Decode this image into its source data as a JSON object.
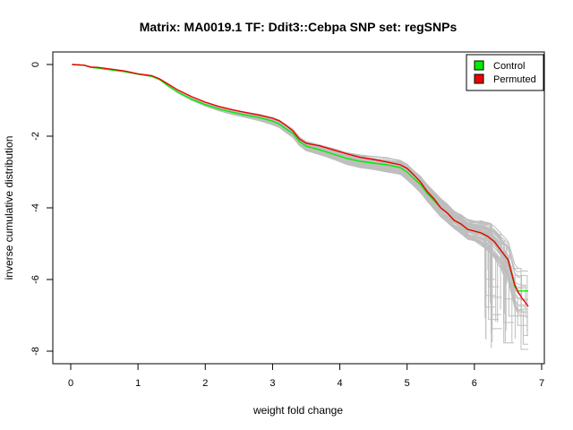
{
  "chart_data": {
    "type": "line",
    "title": "Matrix: MA0019.1 TF: Ddit3::Cebpa SNP set: regSNPs",
    "xlabel": "weight fold change",
    "ylabel": "inverse cumulative distribution",
    "xlim": [
      0,
      7
    ],
    "ylim": [
      -8,
      0
    ],
    "x_ticks": [
      "0",
      "1",
      "2",
      "3",
      "4",
      "5",
      "6",
      "7"
    ],
    "y_ticks": [
      "0",
      "-2",
      "-4",
      "-6",
      "-8"
    ],
    "grid": false,
    "legend": {
      "position": "top-right",
      "entries": [
        {
          "label": "Control",
          "color": "#00ee00"
        },
        {
          "label": "Permuted",
          "color": "#ee0000"
        }
      ]
    },
    "colors": {
      "background_lines": "#bebebe",
      "control": "#00ee00",
      "permuted": "#ee0000"
    },
    "background_line_count": 60,
    "series": [
      {
        "name": "Control",
        "color": "#00ee00",
        "x": [
          0.02,
          0.2,
          0.3,
          0.4,
          0.6,
          0.8,
          1.0,
          1.2,
          1.32,
          1.45,
          1.6,
          1.8,
          2.0,
          2.2,
          2.4,
          2.6,
          2.8,
          3.0,
          3.1,
          3.2,
          3.3,
          3.4,
          3.5,
          3.7,
          3.9,
          4.1,
          4.3,
          4.5,
          4.7,
          4.9,
          5.0,
          5.1,
          5.2,
          5.3,
          5.4,
          5.5,
          5.6,
          5.7,
          5.8,
          5.9,
          6.0,
          6.1,
          6.2,
          6.3,
          6.4,
          6.5,
          6.55,
          6.6,
          6.65,
          6.7,
          6.8
        ],
        "y": [
          0,
          -0.02,
          -0.08,
          -0.1,
          -0.15,
          -0.2,
          -0.27,
          -0.33,
          -0.42,
          -0.6,
          -0.78,
          -0.97,
          -1.12,
          -1.24,
          -1.33,
          -1.41,
          -1.48,
          -1.58,
          -1.66,
          -1.8,
          -1.92,
          -2.15,
          -2.28,
          -2.38,
          -2.5,
          -2.62,
          -2.7,
          -2.75,
          -2.8,
          -2.88,
          -3.0,
          -3.18,
          -3.35,
          -3.6,
          -3.8,
          -4.0,
          -4.15,
          -4.35,
          -4.45,
          -4.6,
          -4.65,
          -4.7,
          -4.8,
          -4.95,
          -5.2,
          -5.45,
          -5.8,
          -6.2,
          -6.32,
          -6.32,
          -6.32
        ]
      },
      {
        "name": "Permuted",
        "color": "#ee0000",
        "x": [
          0.02,
          0.2,
          0.3,
          0.4,
          0.6,
          0.8,
          1.0,
          1.2,
          1.32,
          1.45,
          1.6,
          1.8,
          2.0,
          2.2,
          2.4,
          2.6,
          2.8,
          3.0,
          3.1,
          3.2,
          3.3,
          3.4,
          3.5,
          3.7,
          3.9,
          4.1,
          4.3,
          4.5,
          4.7,
          4.9,
          5.0,
          5.1,
          5.2,
          5.3,
          5.4,
          5.5,
          5.6,
          5.7,
          5.8,
          5.9,
          6.0,
          6.1,
          6.2,
          6.3,
          6.4,
          6.5,
          6.55,
          6.6,
          6.65,
          6.7,
          6.8
        ],
        "y": [
          0,
          -0.02,
          -0.07,
          -0.08,
          -0.13,
          -0.18,
          -0.26,
          -0.31,
          -0.4,
          -0.55,
          -0.72,
          -0.9,
          -1.05,
          -1.17,
          -1.26,
          -1.34,
          -1.41,
          -1.5,
          -1.57,
          -1.7,
          -1.85,
          -2.08,
          -2.2,
          -2.27,
          -2.38,
          -2.49,
          -2.59,
          -2.65,
          -2.72,
          -2.8,
          -2.9,
          -3.08,
          -3.28,
          -3.55,
          -3.75,
          -4.0,
          -4.15,
          -4.35,
          -4.45,
          -4.6,
          -4.65,
          -4.7,
          -4.8,
          -4.95,
          -5.2,
          -5.45,
          -5.8,
          -6.15,
          -6.35,
          -6.5,
          -6.75
        ]
      }
    ]
  }
}
